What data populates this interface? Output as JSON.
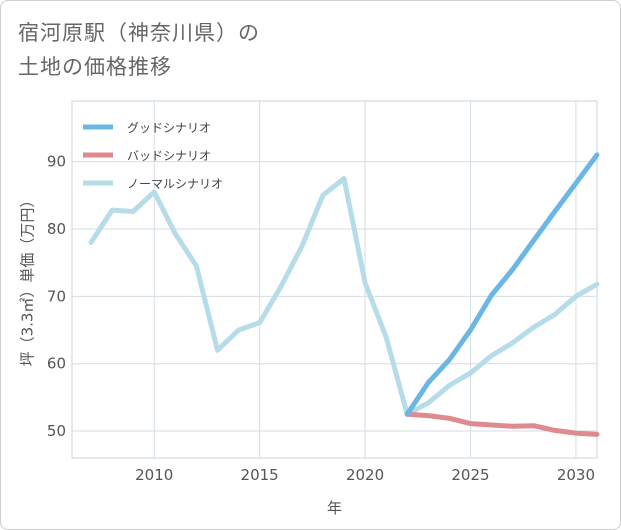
{
  "title": {
    "line1": "宿河原駅（神奈川県）の",
    "line2": "土地の価格推移"
  },
  "chart_data": {
    "type": "line",
    "xlabel": "年",
    "ylabel": "坪（3.3㎡）単価（万円）",
    "xlim": [
      2006.1,
      2031
    ],
    "ylim": [
      46,
      99
    ],
    "x_ticks": [
      2010,
      2015,
      2020,
      2025,
      2030
    ],
    "y_ticks": [
      50,
      60,
      70,
      80,
      90
    ],
    "grid": true,
    "legend_position": "top-left",
    "series": [
      {
        "name": "グッドシナリオ",
        "color": "#6cb6e6",
        "x": [
          2022,
          2023,
          2024,
          2025,
          2026,
          2027,
          2028,
          2029,
          2030,
          2031
        ],
        "values": [
          52.5,
          57.2,
          60.6,
          65.0,
          70.2,
          74.0,
          78.3,
          82.6,
          86.8,
          91.0
        ]
      },
      {
        "name": "バッドシナリオ",
        "color": "#de8a8f",
        "x": [
          2022,
          2023,
          2024,
          2025,
          2026,
          2027,
          2028,
          2029,
          2030,
          2031
        ],
        "values": [
          52.5,
          52.3,
          51.9,
          51.1,
          50.9,
          50.7,
          50.8,
          50.1,
          49.7,
          49.5
        ]
      },
      {
        "name": "ノーマルシナリオ",
        "color": "#b6dcea",
        "x": [
          2007,
          2008,
          2009,
          2010,
          2011,
          2012,
          2013,
          2014,
          2015,
          2016,
          2017,
          2018,
          2019,
          2020,
          2021,
          2022,
          2023,
          2024,
          2025,
          2026,
          2027,
          2028,
          2029,
          2030,
          2031
        ],
        "values": [
          78.0,
          82.8,
          82.6,
          85.5,
          79.3,
          74.5,
          62.0,
          65.0,
          66.1,
          71.4,
          77.4,
          85.0,
          87.5,
          72.0,
          63.9,
          52.5,
          54.2,
          56.8,
          58.6,
          61.2,
          63.1,
          65.4,
          67.3,
          70.0,
          71.8
        ]
      }
    ]
  }
}
